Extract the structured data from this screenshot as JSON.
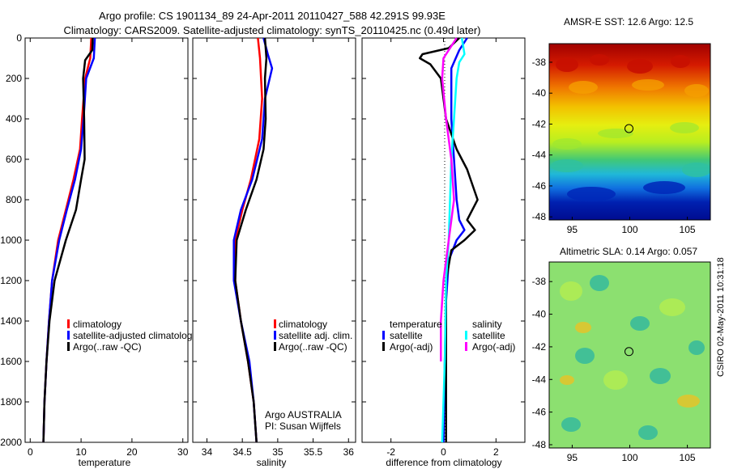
{
  "title_line1": "Argo profile: CS 1901134_89 24-Apr-2011 20110427_588 42.291S 99.93E",
  "title_line2": "Climatology: CARS2009. Satellite-adjusted climatology: synTS_20110425.nc (0.49d later)",
  "side_stamp": "CSIRO 02-May-2011 10:31:18",
  "colors": {
    "red": "#ff0000",
    "blue": "#0000ff",
    "black": "#000000",
    "cyan": "#00ffff",
    "magenta": "#ff00ff"
  },
  "chart_data": [
    {
      "id": "temperature",
      "type": "line",
      "xlabel": "temperature",
      "xlim": [
        -1,
        31
      ],
      "ylim": [
        2000,
        0
      ],
      "ydir": "reverse",
      "xticks": [
        "0",
        "10",
        "20",
        "30"
      ],
      "yticks": [
        "0",
        "200",
        "400",
        "600",
        "800",
        "1000",
        "1200",
        "1400",
        "1600",
        "1800",
        "2000"
      ],
      "legend": [
        "climatology",
        "satellite-adjusted climatology",
        "Argo(..raw -QC)"
      ],
      "series": [
        {
          "name": "climatology",
          "color": "red",
          "points": [
            [
              12.0,
              0
            ],
            [
              11.8,
              100
            ],
            [
              10.8,
              200
            ],
            [
              10.2,
              400
            ],
            [
              9.8,
              550
            ],
            [
              8.5,
              700
            ],
            [
              7.0,
              850
            ],
            [
              5.5,
              1000
            ],
            [
              4.3,
              1200
            ],
            [
              3.7,
              1400
            ],
            [
              3.2,
              1600
            ],
            [
              2.8,
              1800
            ],
            [
              2.6,
              2000
            ]
          ]
        },
        {
          "name": "satellite-adjusted climatology",
          "color": "blue",
          "points": [
            [
              12.7,
              0
            ],
            [
              12.5,
              100
            ],
            [
              11.0,
              200
            ],
            [
              10.5,
              400
            ],
            [
              10.0,
              550
            ],
            [
              8.8,
              700
            ],
            [
              7.2,
              850
            ],
            [
              5.7,
              1000
            ],
            [
              4.3,
              1200
            ],
            [
              3.7,
              1400
            ],
            [
              3.2,
              1600
            ],
            [
              2.8,
              1800
            ],
            [
              2.6,
              2000
            ]
          ]
        },
        {
          "name": "Argo(..raw -QC)",
          "color": "black",
          "points": [
            [
              12.3,
              0
            ],
            [
              12.2,
              60
            ],
            [
              10.8,
              110
            ],
            [
              10.4,
              200
            ],
            [
              10.6,
              400
            ],
            [
              10.7,
              600
            ],
            [
              10.0,
              700
            ],
            [
              9.0,
              850
            ],
            [
              7.0,
              1000
            ],
            [
              4.8,
              1200
            ],
            [
              3.8,
              1400
            ],
            [
              3.2,
              1600
            ],
            [
              2.8,
              1800
            ],
            [
              2.6,
              2000
            ]
          ]
        }
      ]
    },
    {
      "id": "salinity",
      "type": "line",
      "xlabel": "salinity",
      "xlim": [
        33.8,
        36.1
      ],
      "ylim": [
        2000,
        0
      ],
      "ydir": "reverse",
      "xticks": [
        "34",
        "34.5",
        "35",
        "35.5",
        "36"
      ],
      "legend": [
        "climatology",
        "satellite adj. clim.",
        "Argo(..raw -QC)"
      ],
      "annotation": [
        "Argo AUSTRALIA",
        "PI: Susan Wijffels"
      ],
      "series": [
        {
          "name": "climatology",
          "color": "red",
          "points": [
            [
              34.72,
              0
            ],
            [
              34.75,
              100
            ],
            [
              34.78,
              300
            ],
            [
              34.74,
              500
            ],
            [
              34.62,
              700
            ],
            [
              34.5,
              850
            ],
            [
              34.4,
              1000
            ],
            [
              34.4,
              1200
            ],
            [
              34.48,
              1400
            ],
            [
              34.58,
              1600
            ],
            [
              34.66,
              1800
            ],
            [
              34.7,
              2000
            ]
          ]
        },
        {
          "name": "satellite adj. clim.",
          "color": "blue",
          "points": [
            [
              34.8,
              0
            ],
            [
              34.86,
              80
            ],
            [
              34.92,
              150
            ],
            [
              34.82,
              300
            ],
            [
              34.78,
              500
            ],
            [
              34.64,
              700
            ],
            [
              34.48,
              850
            ],
            [
              34.38,
              1000
            ],
            [
              34.38,
              1200
            ],
            [
              34.48,
              1400
            ],
            [
              34.6,
              1600
            ],
            [
              34.66,
              1800
            ],
            [
              34.7,
              2000
            ]
          ]
        },
        {
          "name": "Argo(..raw -QC)",
          "color": "black",
          "points": [
            [
              34.82,
              0
            ],
            [
              34.84,
              100
            ],
            [
              34.82,
              200
            ],
            [
              34.83,
              400
            ],
            [
              34.8,
              550
            ],
            [
              34.7,
              700
            ],
            [
              34.55,
              850
            ],
            [
              34.42,
              1000
            ],
            [
              34.4,
              1200
            ],
            [
              34.48,
              1400
            ],
            [
              34.58,
              1600
            ],
            [
              34.66,
              1800
            ],
            [
              34.7,
              2000
            ]
          ]
        }
      ]
    },
    {
      "id": "difference",
      "type": "line",
      "xlabel": "difference from climatology",
      "xlim": [
        -3.1,
        3.1
      ],
      "ylim": [
        2000,
        0
      ],
      "ydir": "reverse",
      "xticks": [
        "-2",
        "0",
        "2"
      ],
      "legend_temp_title": "temperature",
      "legend_sal_title": "salinity",
      "legend": [
        "satellite",
        "Argo(-adj)",
        "satellite",
        "Argo(-adj)"
      ],
      "series": [
        {
          "name": "temperature satellite",
          "color": "blue",
          "points": [
            [
              0.9,
              0
            ],
            [
              0.6,
              60
            ],
            [
              0.3,
              150
            ],
            [
              0.3,
              400
            ],
            [
              0.4,
              600
            ],
            [
              0.5,
              800
            ],
            [
              0.6,
              900
            ],
            [
              0.8,
              950
            ],
            [
              0.5,
              1000
            ],
            [
              0.2,
              1100
            ],
            [
              0.1,
              1300
            ],
            [
              0.05,
              1600
            ],
            [
              0.0,
              2000
            ]
          ]
        },
        {
          "name": "temperature Argo(-adj)",
          "color": "black",
          "points": [
            [
              0.6,
              0
            ],
            [
              0.2,
              50
            ],
            [
              -0.8,
              80
            ],
            [
              -0.9,
              100
            ],
            [
              -0.5,
              130
            ],
            [
              -0.1,
              200
            ],
            [
              0.1,
              400
            ],
            [
              0.5,
              550
            ],
            [
              0.9,
              650
            ],
            [
              1.3,
              800
            ],
            [
              0.9,
              900
            ],
            [
              1.2,
              950
            ],
            [
              0.8,
              1000
            ],
            [
              0.3,
              1050
            ],
            [
              0.1,
              1200
            ],
            [
              0.1,
              1700
            ],
            [
              0.1,
              2000
            ]
          ]
        },
        {
          "name": "salinity satellite",
          "color": "cyan",
          "points": [
            [
              0.7,
              0
            ],
            [
              0.8,
              80
            ],
            [
              0.6,
              120
            ],
            [
              0.5,
              200
            ],
            [
              0.4,
              400
            ],
            [
              0.3,
              600
            ],
            [
              0.25,
              800
            ],
            [
              0.2,
              1000
            ],
            [
              0.1,
              1200
            ],
            [
              0.05,
              1600
            ],
            [
              -0.05,
              2000
            ]
          ]
        },
        {
          "name": "salinity Argo(-adj)",
          "color": "magenta",
          "points": [
            [
              0.5,
              0
            ],
            [
              0.0,
              100
            ],
            [
              -0.05,
              200
            ],
            [
              0.1,
              400
            ],
            [
              0.3,
              600
            ],
            [
              0.4,
              800
            ],
            [
              0.2,
              1000
            ],
            [
              0.0,
              1200
            ],
            [
              -0.1,
              1400
            ],
            [
              -0.1,
              1600
            ]
          ]
        }
      ]
    },
    {
      "id": "sst_map",
      "type": "heatmap",
      "title": "AMSR-E SST: 12.6 Argo: 12.5",
      "xlim": [
        93,
        107
      ],
      "ylim": [
        -48.2,
        -36.8
      ],
      "xticks": [
        "95",
        "100",
        "105"
      ],
      "yticks": [
        "-38",
        "-40",
        "-42",
        "-44",
        "-46",
        "-48"
      ],
      "marker": [
        99.93,
        -42.291
      ]
    },
    {
      "id": "sla_map",
      "type": "heatmap",
      "title": "Altimetric SLA: 0.14 Argo: 0.057",
      "xlim": [
        93,
        107
      ],
      "ylim": [
        -48.2,
        -36.8
      ],
      "xticks": [
        "95",
        "100",
        "105"
      ],
      "yticks": [
        "-38",
        "-40",
        "-42",
        "-44",
        "-46",
        "-48"
      ],
      "marker": [
        99.93,
        -42.291
      ]
    }
  ]
}
